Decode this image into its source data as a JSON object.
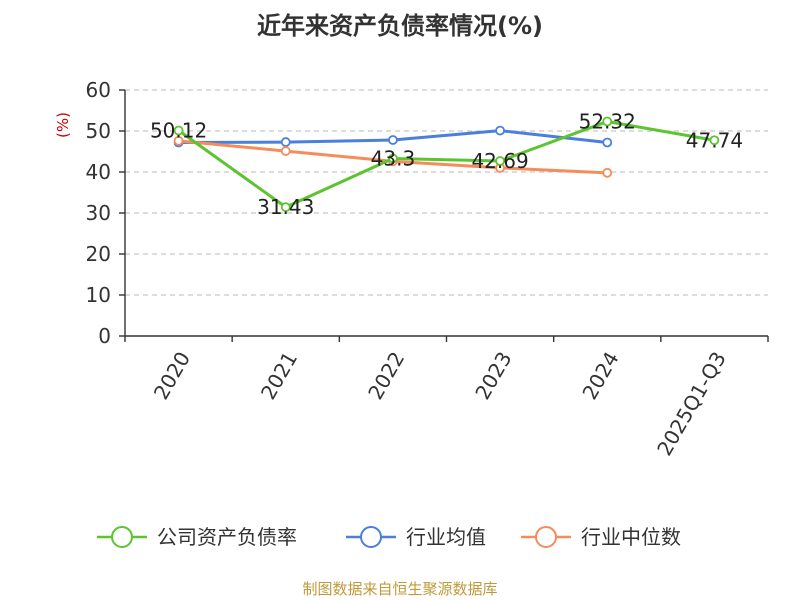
{
  "chart_data": {
    "type": "line",
    "title": "近年来资产负债率情况(%)",
    "ylabel": "(%)",
    "xlabel": "",
    "categories": [
      "2020",
      "2021",
      "2022",
      "2023",
      "2024",
      "2025Q1-Q3"
    ],
    "ylim": [
      0,
      60
    ],
    "yticks": [
      0,
      10,
      20,
      30,
      40,
      50,
      60
    ],
    "grid": true,
    "legend_position": "bottom",
    "series": [
      {
        "name": "公司资产负债率",
        "color": "#5cc42e",
        "values": [
          50.12,
          31.43,
          43.3,
          42.69,
          52.32,
          47.74
        ],
        "labels": [
          "50.12",
          "31.43",
          "43.3",
          "42.69",
          "52.32",
          "47.74"
        ]
      },
      {
        "name": "行业均值",
        "color": "#4a7fdc",
        "values": [
          47.2,
          47.3,
          47.8,
          50.1,
          47.2,
          null
        ]
      },
      {
        "name": "行业中位数",
        "color": "#f58c5a",
        "values": [
          47.6,
          45.1,
          42.6,
          41.0,
          39.8,
          null
        ]
      }
    ]
  },
  "source": "制图数据来自恒生聚源数据库"
}
